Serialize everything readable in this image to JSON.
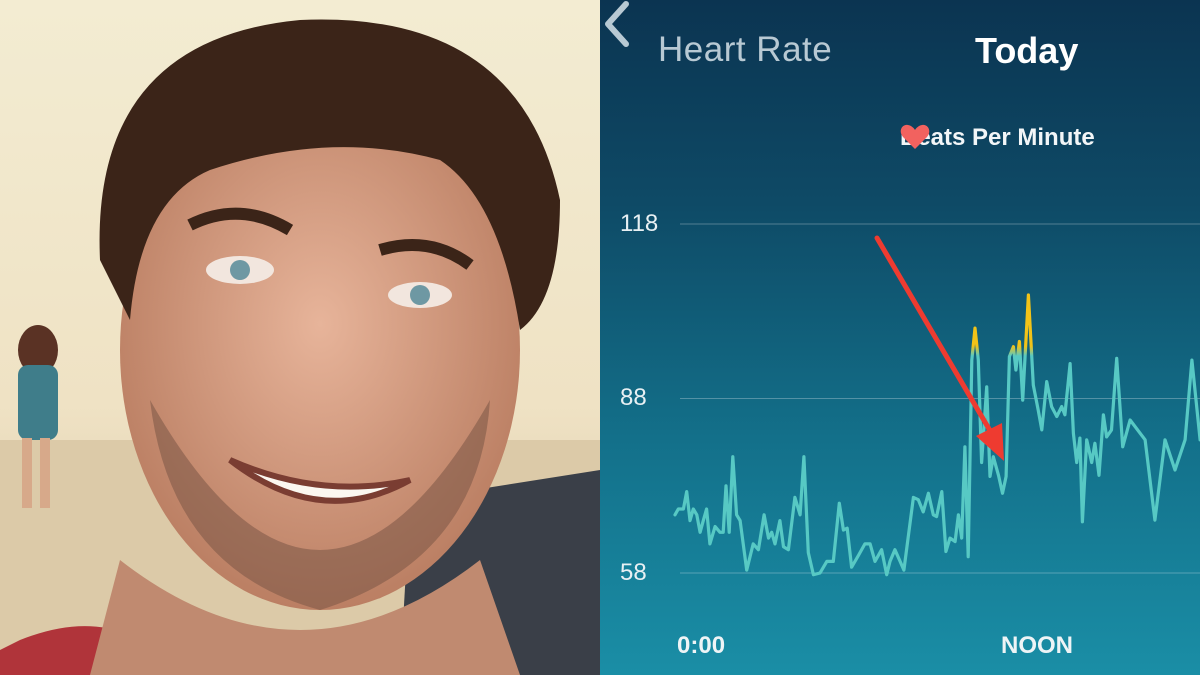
{
  "header": {
    "back_label": "Heart Rate",
    "period": "Today"
  },
  "legend": {
    "label": "Beats Per Minute",
    "icon": "heart-icon",
    "color": "#f2625f"
  },
  "colors": {
    "line": "#57c9c4",
    "peak_zone": "#f2c318",
    "arrow": "#ee3b30"
  },
  "chart_data": {
    "type": "line",
    "xlabel": "",
    "ylabel": "",
    "y_ticks": [
      "118",
      "88",
      "58"
    ],
    "x_ticks": [
      "0:00",
      "NOON"
    ],
    "ylim": [
      58,
      118
    ],
    "xlim_hours": [
      0,
      19.3
    ],
    "grid": true,
    "legend_position": "top-right",
    "zone_threshold_bpm": 96,
    "series": [
      {
        "name": "Beats Per Minute",
        "x_hours": [
          0,
          0.12,
          0.31,
          0.43,
          0.55,
          0.67,
          0.8,
          0.92,
          1.04,
          1.16,
          1.28,
          1.47,
          1.65,
          1.77,
          1.87,
          1.99,
          2.12,
          2.26,
          2.39,
          2.63,
          2.87,
          3.06,
          3.27,
          3.43,
          3.55,
          3.67,
          3.85,
          3.98,
          4.16,
          4.4,
          4.59,
          4.73,
          4.89,
          5.08,
          5.32,
          5.57,
          5.81,
          6.03,
          6.18,
          6.32,
          6.48,
          6.73,
          6.97,
          7.16,
          7.34,
          7.58,
          7.77,
          7.89,
          8.07,
          8.26,
          8.4,
          8.75,
          8.93,
          9.11,
          9.3,
          9.48,
          9.6,
          9.79,
          9.94,
          10.09,
          10.28,
          10.4,
          10.52,
          10.64,
          10.76,
          10.89,
          11.01,
          11.13,
          11.25,
          11.44,
          11.56,
          11.68,
          11.87,
          12.02,
          12.15,
          12.27,
          12.42,
          12.51,
          12.64,
          12.76,
          12.97,
          13.15,
          13.33,
          13.46,
          13.64,
          13.82,
          14.01,
          14.19,
          14.31,
          14.5,
          14.62,
          14.74,
          14.86,
          14.95,
          15.11,
          15.29,
          15.41,
          15.56,
          15.72,
          15.84,
          16.02,
          16.21,
          16.43,
          16.7,
          17.25,
          17.61,
          17.98,
          18.35,
          18.72,
          18.97,
          19.27
        ],
        "bpm": [
          68,
          69,
          69,
          72,
          67,
          69,
          68,
          65,
          67,
          69,
          63,
          66,
          65,
          65,
          73,
          65,
          78,
          68,
          67,
          58.5,
          63,
          62,
          68,
          64,
          65,
          63,
          67,
          62.5,
          62,
          71,
          68,
          78,
          61.5,
          57.7,
          58,
          60,
          60,
          70,
          65.4,
          65.7,
          59,
          61,
          63,
          63,
          60,
          62,
          57.7,
          60,
          62,
          60,
          58.5,
          71,
          70.6,
          68.5,
          71.7,
          68,
          67.7,
          72,
          61.7,
          64,
          63.4,
          68,
          64,
          79.7,
          60.8,
          94.6,
          100.1,
          94.6,
          77,
          90,
          74.6,
          78,
          74.8,
          71.7,
          74.6,
          95.2,
          96.9,
          92.9,
          97.8,
          87.7,
          105.8,
          90.3,
          86,
          82.6,
          90.9,
          86.6,
          84.9,
          86.6,
          85.2,
          94,
          82,
          77,
          81.2,
          66.8,
          80.9,
          77,
          80.3,
          74.8,
          85.2,
          81.4,
          82.6,
          94.9,
          79.7,
          84.3,
          80.9,
          67.1,
          80.9,
          75.7,
          80.9,
          94.6,
          80.9
        ]
      }
    ]
  }
}
